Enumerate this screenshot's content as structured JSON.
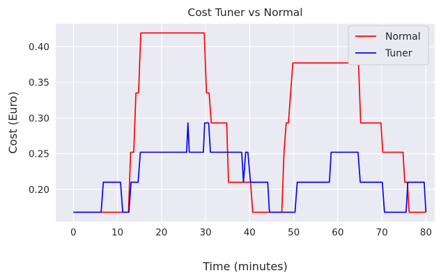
{
  "chart_data": {
    "type": "line",
    "title": "Cost Tuner vs Normal",
    "xlabel": "Time (minutes)",
    "ylabel": "Cost (Euro)",
    "xlim": [
      -4,
      82
    ],
    "ylim": [
      0.155,
      0.432
    ],
    "xticks": [
      0,
      10,
      20,
      30,
      40,
      50,
      60,
      70,
      80
    ],
    "xtick_labels": [
      "0",
      "10",
      "20",
      "30",
      "40",
      "50",
      "60",
      "70",
      "80"
    ],
    "yticks": [
      0.2,
      0.25,
      0.3,
      0.35,
      0.4
    ],
    "ytick_labels": [
      "0.20",
      "0.25",
      "0.30",
      "0.35",
      "0.40"
    ],
    "grid": true,
    "legend_position": "top-right",
    "background_color": "#eaeaf2",
    "grid_color": "#ffffff",
    "series": [
      {
        "name": "Normal",
        "color": "#ff0000",
        "x": [
          0,
          6.5,
          12.5,
          13.0,
          13.7,
          14.2,
          14.8,
          15.3,
          29.7,
          30.2,
          30.8,
          31.3,
          34.8,
          35.2,
          40.2,
          40.7,
          47.3,
          47.8,
          48.3,
          48.8,
          49.3,
          49.8,
          64.7,
          65.2,
          69.8,
          70.2,
          74.8,
          75.2,
          75.8,
          76.2,
          80
        ],
        "y": [
          0.168,
          0.168,
          0.168,
          0.252,
          0.252,
          0.335,
          0.335,
          0.419,
          0.419,
          0.335,
          0.335,
          0.293,
          0.293,
          0.21,
          0.21,
          0.168,
          0.168,
          0.252,
          0.293,
          0.293,
          0.335,
          0.377,
          0.377,
          0.293,
          0.293,
          0.252,
          0.252,
          0.21,
          0.21,
          0.168,
          0.168
        ]
      },
      {
        "name": "Tuner",
        "color": "#0000ff",
        "x": [
          0,
          6.3,
          6.8,
          10.7,
          11.2,
          12.6,
          13.1,
          14.7,
          15.2,
          25.7,
          26.0,
          26.3,
          29.5,
          29.8,
          30.7,
          31.1,
          38.2,
          38.6,
          39.1,
          39.6,
          40.2,
          44.1,
          44.5,
          50.3,
          50.8,
          58.1,
          58.5,
          64.6,
          65.1,
          70.1,
          70.6,
          75.5,
          75.9,
          76.3,
          79.6,
          80
        ],
        "y": [
          0.168,
          0.168,
          0.21,
          0.21,
          0.168,
          0.168,
          0.21,
          0.21,
          0.252,
          0.252,
          0.293,
          0.252,
          0.252,
          0.293,
          0.293,
          0.252,
          0.252,
          0.21,
          0.252,
          0.252,
          0.21,
          0.21,
          0.168,
          0.168,
          0.21,
          0.21,
          0.252,
          0.252,
          0.21,
          0.21,
          0.168,
          0.168,
          0.21,
          0.21,
          0.21,
          0.168
        ]
      }
    ]
  }
}
